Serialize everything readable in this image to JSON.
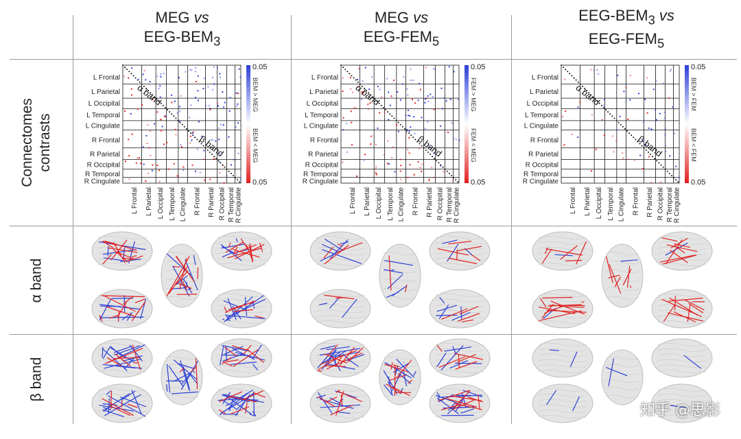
{
  "columns": [
    {
      "line1": "MEG",
      "vs": "vs",
      "line2": "EEG-BEM",
      "sub": "3"
    },
    {
      "line1": "MEG",
      "vs": "vs",
      "line2": "EEG-FEM",
      "sub": "5"
    },
    {
      "line1": "EEG-BEM",
      "line1_sub": "3",
      "vs": "vs",
      "line2": "EEG-FEM",
      "sub": "5"
    }
  ],
  "rows": {
    "connectome": "Connectomes contrasts",
    "connectome_line1": "Connectomes",
    "connectome_line2": "contrasts",
    "alpha": "α band",
    "beta": "β band"
  },
  "matrix": {
    "regions": [
      "L Frontal",
      "L Parietal",
      "L Occipital",
      "L Temporal",
      "L Cingulate",
      "R Frontal",
      "R Parietal",
      "R Occipital",
      "R Temporal",
      "R Cingulate"
    ],
    "alpha_label": "α band",
    "beta_label": "β band",
    "scale_top": "0.05",
    "scale_bottom": "0.05",
    "colorbar_labels": [
      {
        "upper": "BEM > MEG",
        "lower": "BEM < MEG"
      },
      {
        "upper": "FEM > MEG",
        "lower": "FEM < MEG"
      },
      {
        "upper": "BEM > FEM",
        "lower": "BEM < FEM"
      }
    ],
    "colors": {
      "positive": "#2b3fd6",
      "negative": "#e02020"
    }
  },
  "watermark": "知乎 @思影"
}
